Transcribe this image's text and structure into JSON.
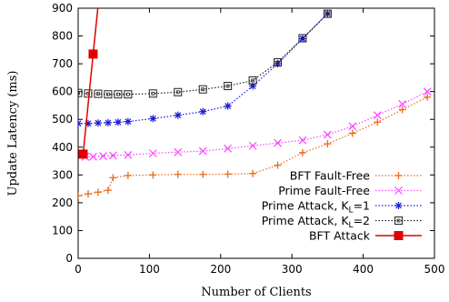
{
  "chart_data": {
    "type": "line",
    "xlabel": "Number of Clients",
    "ylabel": "Update Latency (ms)",
    "xlim": [
      0,
      500
    ],
    "ylim": [
      0,
      900
    ],
    "x_ticks": [
      "0",
      "100",
      "200",
      "300",
      "400",
      "500"
    ],
    "y_ticks": [
      "0",
      "100",
      "200",
      "300",
      "400",
      "500",
      "600",
      "700",
      "800",
      "900"
    ],
    "grid": false,
    "legend_position": "right-middle",
    "series": [
      {
        "name": "BFT Fault-Free",
        "legend_main": "BFT Fault-Free",
        "legend_sub": "",
        "legend_tail": "",
        "color": "#ee6a1a",
        "marker": "plus",
        "line": "dotted",
        "x": [
          0,
          14,
          28,
          42,
          49,
          70,
          105,
          140,
          175,
          210,
          245,
          280,
          315,
          350,
          385,
          420,
          455,
          490
        ],
        "y": [
          225,
          232,
          238,
          245,
          290,
          298,
          300,
          302,
          302,
          303,
          305,
          335,
          380,
          412,
          450,
          490,
          535,
          580
        ]
      },
      {
        "name": "Prime Fault-Free",
        "legend_main": "Prime Fault-Free",
        "legend_sub": "",
        "legend_tail": "",
        "color": "#ff44ff",
        "marker": "x",
        "line": "dotted",
        "x": [
          10,
          21,
          35,
          49,
          70,
          105,
          140,
          175,
          210,
          245,
          280,
          315,
          350,
          385,
          420,
          455,
          490
        ],
        "y": [
          365,
          366,
          368,
          370,
          372,
          378,
          382,
          386,
          395,
          405,
          415,
          425,
          445,
          475,
          515,
          555,
          600
        ]
      },
      {
        "name": "Prime Attack, KL=1",
        "legend_main": "Prime Attack, K",
        "legend_sub": "L",
        "legend_tail": "=1",
        "color": "#1a1ad8",
        "marker": "star",
        "line": "dotted",
        "x": [
          0,
          14,
          28,
          42,
          56,
          70,
          105,
          140,
          175,
          210,
          245,
          280,
          315,
          350
        ],
        "y": [
          485,
          485,
          487,
          488,
          490,
          492,
          503,
          515,
          528,
          548,
          620,
          700,
          790,
          880
        ]
      },
      {
        "name": "Prime Attack, KL=2",
        "legend_main": "Prime Attack, K",
        "legend_sub": "L",
        "legend_tail": "=2",
        "color": "#222222",
        "marker": "square",
        "line": "dotted",
        "x": [
          0,
          14,
          28,
          42,
          56,
          70,
          105,
          140,
          175,
          210,
          245,
          280,
          315,
          350
        ],
        "y": [
          595,
          593,
          592,
          590,
          590,
          590,
          593,
          598,
          608,
          620,
          640,
          705,
          792,
          880
        ]
      },
      {
        "name": "BFT Attack",
        "legend_main": "BFT Attack",
        "legend_sub": "",
        "legend_tail": "",
        "color": "#e00000",
        "marker": "filled-square",
        "line": "solid",
        "x": [
          7,
          21,
          30
        ],
        "y": [
          375,
          735,
          960
        ]
      }
    ]
  }
}
